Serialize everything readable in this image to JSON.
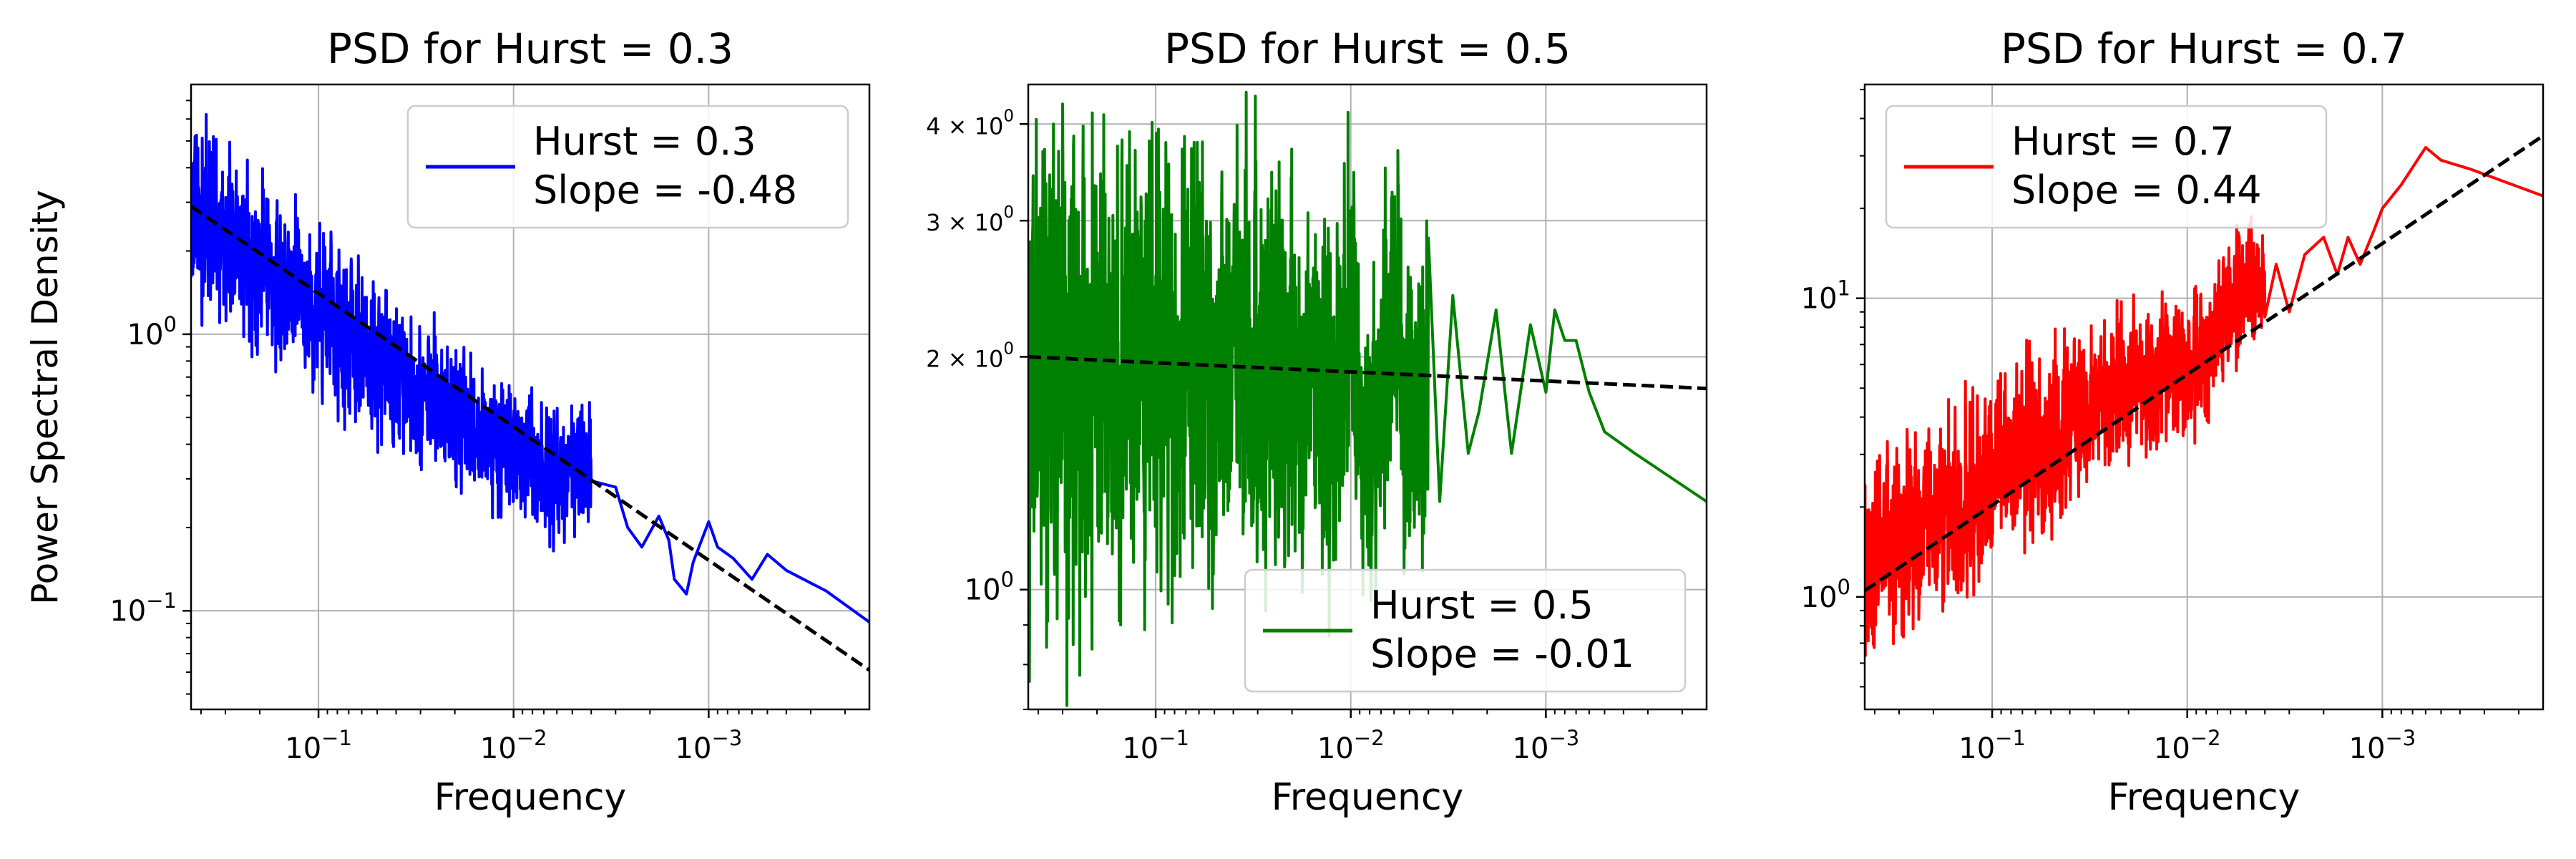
{
  "ylabel": "Power Spectral Density",
  "chart_data": [
    {
      "type": "line",
      "title": "PSD for Hurst = 0.3",
      "xlabel": "Frequency",
      "x_scale": "log",
      "x_reversed": true,
      "xlim": [
        0.45,
        0.00015
      ],
      "y_scale": "log",
      "ylim": [
        0.044,
        8.0
      ],
      "xticks": [
        {
          "value": 0.1,
          "label": "10^-1"
        },
        {
          "value": 0.01,
          "label": "10^-2"
        },
        {
          "value": 0.001,
          "label": "10^-3"
        }
      ],
      "yticks": [
        {
          "value": 1,
          "label": "10^0"
        },
        {
          "value": 0.1,
          "label": "10^-1"
        }
      ],
      "grid": true,
      "legend_position": "upper right",
      "series": [
        {
          "name": "Hurst = 0.3",
          "color": "#0000ff",
          "style": "solid",
          "noisy": true,
          "x": [
            0.45,
            0.3,
            0.2,
            0.1,
            0.05,
            0.03,
            0.02,
            0.01,
            0.006,
            0.0045,
            0.003,
            0.0026,
            0.0022,
            0.0018,
            0.0016,
            0.0015,
            0.0013,
            0.0012,
            0.001,
            0.0009,
            0.00075,
            0.0006,
            0.0005,
            0.0004,
            0.00025,
            0.00015
          ],
          "y": [
            2.8,
            2.2,
            1.8,
            1.2,
            0.8,
            0.6,
            0.5,
            0.38,
            0.3,
            0.35,
            0.28,
            0.2,
            0.17,
            0.22,
            0.18,
            0.13,
            0.115,
            0.15,
            0.21,
            0.17,
            0.155,
            0.13,
            0.16,
            0.14,
            0.118,
            0.091
          ]
        },
        {
          "name": "Slope = -0.48",
          "color": "#000000",
          "style": "dashed",
          "noisy": false,
          "x": [
            0.45,
            0.00015
          ],
          "y": [
            2.9,
            0.061
          ]
        }
      ]
    },
    {
      "type": "line",
      "title": "PSD for Hurst = 0.5",
      "xlabel": "Frequency",
      "x_scale": "log",
      "x_reversed": true,
      "xlim": [
        0.45,
        0.00015
      ],
      "y_scale": "log",
      "ylim": [
        0.7,
        4.5
      ],
      "xticks": [
        {
          "value": 0.1,
          "label": "10^-1"
        },
        {
          "value": 0.01,
          "label": "10^-2"
        },
        {
          "value": 0.001,
          "label": "10^-3"
        }
      ],
      "yticks": [
        {
          "value": 4,
          "label": "4 × 10^0"
        },
        {
          "value": 3,
          "label": "3 × 10^0"
        },
        {
          "value": 2,
          "label": "2 × 10^0"
        },
        {
          "value": 1,
          "label": "10^0"
        }
      ],
      "grid": true,
      "legend_position": "lower right",
      "series": [
        {
          "name": "Hurst = 0.5",
          "color": "#008000",
          "style": "solid",
          "noisy": true,
          "x": [
            0.45,
            0.2,
            0.1,
            0.05,
            0.02,
            0.012,
            0.01,
            0.008,
            0.006,
            0.005,
            0.004,
            0.0035,
            0.003,
            0.0025,
            0.0022,
            0.0018,
            0.0015,
            0.0012,
            0.001,
            0.0009,
            0.0008,
            0.0007,
            0.0006,
            0.0005,
            0.00035,
            0.00015
          ],
          "y": [
            2.0,
            1.9,
            2.0,
            1.95,
            1.9,
            1.6,
            2.2,
            1.4,
            2.3,
            1.5,
            2.0,
            1.3,
            2.4,
            1.5,
            1.7,
            2.3,
            1.5,
            2.2,
            1.8,
            2.3,
            2.1,
            2.1,
            1.8,
            1.6,
            1.5,
            1.3
          ]
        },
        {
          "name": "Slope = -0.01",
          "color": "#000000",
          "style": "dashed",
          "noisy": false,
          "x": [
            0.45,
            0.00015
          ],
          "y": [
            2.0,
            1.82
          ]
        }
      ]
    },
    {
      "type": "line",
      "title": "PSD for Hurst = 0.7",
      "xlabel": "Frequency",
      "x_scale": "log",
      "x_reversed": true,
      "xlim": [
        0.45,
        0.00015
      ],
      "y_scale": "log",
      "ylim": [
        0.42,
        52
      ],
      "xticks": [
        {
          "value": 0.1,
          "label": "10^-1"
        },
        {
          "value": 0.01,
          "label": "10^-2"
        },
        {
          "value": 0.001,
          "label": "10^-3"
        }
      ],
      "yticks": [
        {
          "value": 10,
          "label": "10^1"
        },
        {
          "value": 1,
          "label": "10^0"
        }
      ],
      "grid": true,
      "legend_position": "upper left",
      "series": [
        {
          "name": "Hurst = 0.7",
          "color": "#ff0000",
          "style": "solid",
          "noisy": true,
          "x": [
            0.45,
            0.2,
            0.1,
            0.05,
            0.02,
            0.01,
            0.006,
            0.005,
            0.004,
            0.0035,
            0.003,
            0.0025,
            0.002,
            0.0017,
            0.0015,
            0.0013,
            0.0011,
            0.001,
            0.0008,
            0.0006,
            0.0005,
            0.00035,
            0.00015
          ],
          "y": [
            1.2,
            1.8,
            2.6,
            3.5,
            5.0,
            6.0,
            9.0,
            12.0,
            10.0,
            13.0,
            9.0,
            14.0,
            16.0,
            12.0,
            16.0,
            13.0,
            17.0,
            20.0,
            24.0,
            32.0,
            29.0,
            27.0,
            22.0
          ]
        },
        {
          "name": "Slope = 0.44",
          "color": "#000000",
          "style": "dashed",
          "noisy": false,
          "x": [
            0.45,
            0.00015
          ],
          "y": [
            1.05,
            35.0
          ]
        }
      ]
    }
  ]
}
